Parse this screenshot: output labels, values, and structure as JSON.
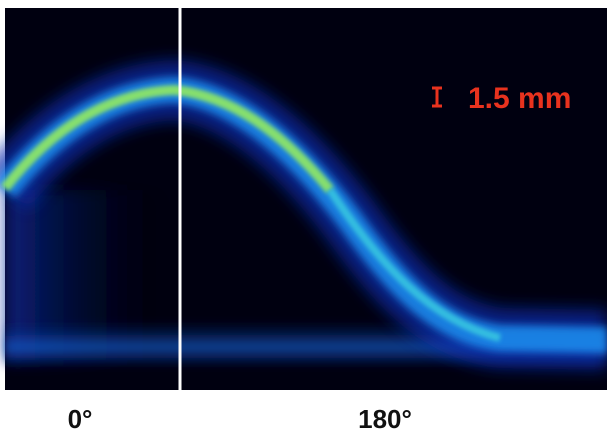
{
  "image": {
    "scale_label": "1.5 mm"
  },
  "axis_labels": {
    "left": "0°",
    "right": "180°"
  }
}
